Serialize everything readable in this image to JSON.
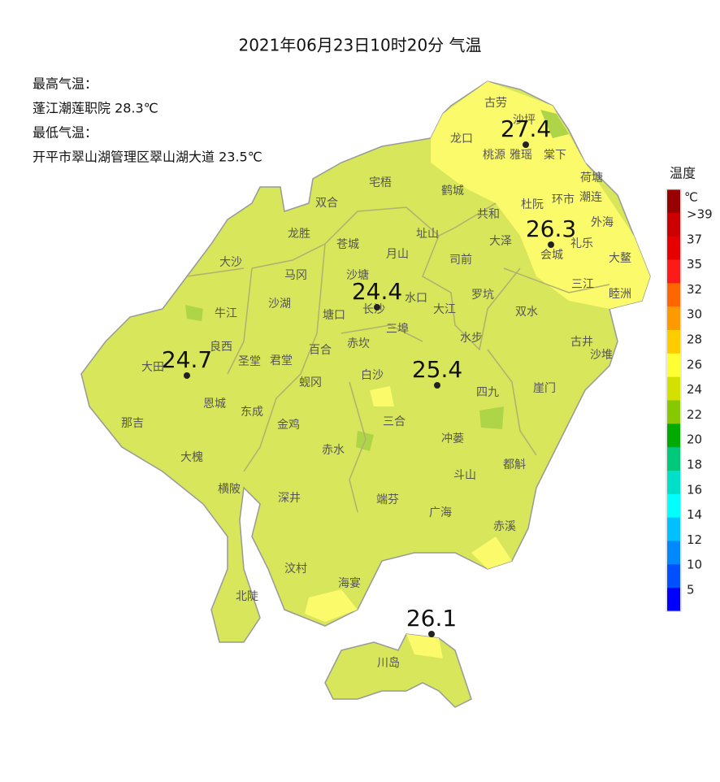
{
  "title": "2021年06月23日10时20分 气温",
  "info": [
    "最高气温：",
    "蓬江潮莲职院 28.3℃",
    "最低气温：",
    "开平市翠山湖管理区翠山湖大道 23.5℃"
  ],
  "towns": [
    "古劳",
    "沙坪",
    "龙口",
    "桃源",
    "雅瑶",
    "棠下",
    "荷塘",
    "宅梧",
    "鹤城",
    "双合",
    "杜阮",
    "环市",
    "潮连",
    "共和",
    "外海",
    "龙胜",
    "苍城",
    "址山",
    "大泽",
    "礼乐",
    "大沙",
    "月山",
    "司前",
    "会城",
    "大鳌",
    "马冈",
    "沙塘",
    "三江",
    "沙湖",
    "水口",
    "罗坑",
    "睦洲",
    "牛江",
    "塘口",
    "长沙",
    "大江",
    "双水",
    "三埠",
    "良西",
    "水步",
    "古井",
    "百合",
    "赤坎",
    "圣堂",
    "君堂",
    "沙堆",
    "大田",
    "白沙",
    "蚬冈",
    "四九",
    "崖门",
    "恩城",
    "东成",
    "三合",
    "那吉",
    "金鸡",
    "冲蒌",
    "赤水",
    "大槐",
    "都斛",
    "斗山",
    "横陂",
    "深井",
    "端芬",
    "广海",
    "赤溪",
    "汶村",
    "海宴",
    "北陡",
    "川岛"
  ],
  "stations": [
    27.4,
    26.3,
    24.4,
    24.7,
    25.4,
    26.1
  ],
  "legend": {
    "title": "温度",
    "unit": "℃",
    "ticks": [
      ">39",
      37,
      35,
      32,
      30,
      28,
      26,
      24,
      22,
      20,
      18,
      16,
      14,
      12,
      10,
      5
    ],
    "colors": [
      "#990000",
      "#cc0000",
      "#e60000",
      "#ff1a1a",
      "#ff6600",
      "#ff9900",
      "#ffcc00",
      "#ffff33",
      "#d4e000",
      "#88c800",
      "#00aa00",
      "#00c87a",
      "#00e0c8",
      "#00ffff",
      "#00c0ff",
      "#0088ff",
      "#0050ff",
      "#0000ff"
    ]
  }
}
